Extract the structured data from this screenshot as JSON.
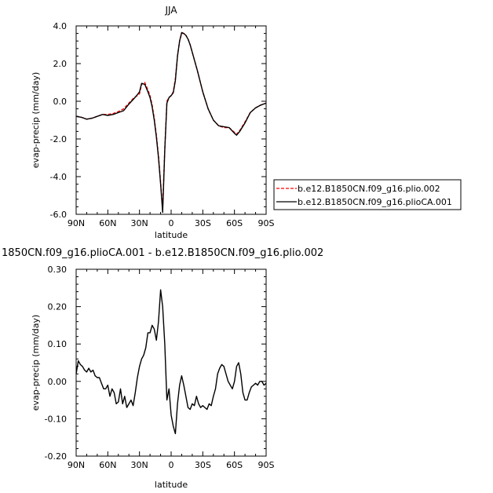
{
  "chart_data": [
    {
      "type": "line",
      "title": "JJA",
      "xlabel": "latitude",
      "ylabel": "evap-precip (mm/day)",
      "xlim": [
        90,
        -90
      ],
      "ylim": [
        -6.0,
        4.0
      ],
      "xticks": [
        90,
        60,
        30,
        0,
        -30,
        -60,
        -90
      ],
      "xtick_labels": [
        "90N",
        "60N",
        "30N",
        "0",
        "30S",
        "60S",
        "90S"
      ],
      "yticks": [
        -6,
        -4,
        -2,
        0,
        2,
        4
      ],
      "ytick_labels": [
        "-6.0",
        "-4.0",
        "-2.0",
        "0.0",
        "2.0",
        "4.0"
      ],
      "legend_position": "right",
      "series": [
        {
          "name": "b.e12.B1850CN.f09_g16.plio.002",
          "color": "#ff0000",
          "dash": "dashed",
          "x": [
            90,
            85,
            80,
            75,
            70,
            65,
            60,
            55,
            50,
            45,
            40,
            35,
            32,
            30,
            28,
            25,
            22,
            20,
            18,
            16,
            14,
            12,
            10,
            8,
            6,
            4,
            2,
            0,
            -2,
            -4,
            -6,
            -8,
            -10,
            -12,
            -14,
            -16,
            -18,
            -20,
            -25,
            -30,
            -35,
            -40,
            -45,
            -50,
            -55,
            -60,
            -62,
            -65,
            -70,
            -75,
            -80,
            -85,
            -90
          ],
          "y": [
            -0.8,
            -0.85,
            -0.95,
            -0.9,
            -0.8,
            -0.7,
            -0.7,
            -0.65,
            -0.55,
            -0.4,
            -0.1,
            0.2,
            0.3,
            0.4,
            0.9,
            1.0,
            0.6,
            0.3,
            -0.2,
            -0.9,
            -1.8,
            -2.9,
            -4.3,
            -5.7,
            -2.5,
            0.0,
            0.2,
            0.3,
            0.5,
            1.2,
            2.4,
            3.2,
            3.6,
            3.6,
            3.5,
            3.3,
            3.0,
            2.6,
            1.6,
            0.5,
            -0.4,
            -1.0,
            -1.3,
            -1.4,
            -1.4,
            -1.65,
            -1.75,
            -1.55,
            -1.1,
            -0.6,
            -0.35,
            -0.2,
            -0.1
          ]
        },
        {
          "name": "b.e12.B1850CN.f09_g16.plioCA.001",
          "color": "#000000",
          "dash": "solid",
          "x": [
            90,
            85,
            80,
            75,
            70,
            65,
            60,
            55,
            50,
            45,
            40,
            35,
            32,
            30,
            28,
            25,
            22,
            20,
            18,
            16,
            14,
            12,
            10,
            8,
            6,
            4,
            2,
            0,
            -2,
            -4,
            -6,
            -8,
            -10,
            -12,
            -14,
            -16,
            -18,
            -20,
            -25,
            -30,
            -35,
            -40,
            -45,
            -50,
            -55,
            -60,
            -62,
            -65,
            -70,
            -75,
            -80,
            -85,
            -90
          ],
          "y": [
            -0.8,
            -0.85,
            -0.95,
            -0.9,
            -0.8,
            -0.7,
            -0.75,
            -0.7,
            -0.6,
            -0.5,
            -0.15,
            0.15,
            0.35,
            0.5,
            0.95,
            0.9,
            0.5,
            0.2,
            -0.3,
            -1.0,
            -1.9,
            -3.0,
            -4.4,
            -5.9,
            -2.6,
            -0.1,
            0.2,
            0.3,
            0.45,
            1.1,
            2.4,
            3.2,
            3.65,
            3.6,
            3.5,
            3.3,
            3.0,
            2.6,
            1.6,
            0.5,
            -0.4,
            -1.0,
            -1.3,
            -1.35,
            -1.4,
            -1.7,
            -1.8,
            -1.6,
            -1.15,
            -0.6,
            -0.35,
            -0.2,
            -0.1
          ]
        }
      ]
    },
    {
      "type": "line",
      "title": "1850CN.f09_g16.plioCA.001 - b.e12.B1850CN.f09_g16.plio.002",
      "xlabel": "latitude",
      "ylabel": "evap-precip (mm/day)",
      "xlim": [
        90,
        -90
      ],
      "ylim": [
        -0.2,
        0.3
      ],
      "xticks": [
        90,
        60,
        30,
        0,
        -30,
        -60,
        -90
      ],
      "xtick_labels": [
        "90N",
        "60N",
        "30N",
        "0",
        "30S",
        "60S",
        "90S"
      ],
      "yticks": [
        -0.2,
        -0.1,
        0.0,
        0.1,
        0.2,
        0.3
      ],
      "ytick_labels": [
        "-0.20",
        "-0.10",
        "0.00",
        "0.10",
        "0.20",
        "0.30"
      ],
      "series": [
        {
          "color": "#000000",
          "dash": "solid",
          "x": [
            90,
            88,
            86,
            84,
            82,
            80,
            78,
            76,
            74,
            72,
            70,
            68,
            66,
            64,
            62,
            60,
            58,
            56,
            54,
            52,
            50,
            48,
            46,
            44,
            42,
            40,
            38,
            36,
            34,
            32,
            30,
            28,
            26,
            24,
            22,
            20,
            18,
            16,
            14,
            12,
            10,
            8,
            6,
            4,
            2,
            0,
            -2,
            -4,
            -6,
            -8,
            -10,
            -12,
            -14,
            -16,
            -18,
            -20,
            -22,
            -24,
            -26,
            -28,
            -30,
            -32,
            -34,
            -36,
            -38,
            -40,
            -42,
            -44,
            -46,
            -48,
            -50,
            -52,
            -54,
            -56,
            -58,
            -60,
            -62,
            -64,
            -66,
            -68,
            -70,
            -72,
            -74,
            -76,
            -78,
            -80,
            -82,
            -84,
            -86,
            -88,
            -90
          ],
          "y": [
            0.02,
            0.055,
            0.045,
            0.04,
            0.03,
            0.025,
            0.035,
            0.025,
            0.03,
            0.015,
            0.01,
            0.01,
            -0.005,
            -0.02,
            -0.02,
            -0.01,
            -0.04,
            -0.02,
            -0.03,
            -0.06,
            -0.055,
            -0.02,
            -0.06,
            -0.04,
            -0.07,
            -0.06,
            -0.05,
            -0.065,
            -0.03,
            0.01,
            0.04,
            0.06,
            0.07,
            0.09,
            0.13,
            0.13,
            0.15,
            0.14,
            0.11,
            0.16,
            0.245,
            0.2,
            0.1,
            -0.05,
            -0.02,
            -0.09,
            -0.12,
            -0.14,
            -0.06,
            -0.01,
            0.015,
            -0.01,
            -0.04,
            -0.07,
            -0.075,
            -0.06,
            -0.065,
            -0.04,
            -0.06,
            -0.07,
            -0.065,
            -0.07,
            -0.075,
            -0.06,
            -0.065,
            -0.04,
            -0.02,
            0.02,
            0.035,
            0.045,
            0.04,
            0.02,
            0.0,
            -0.01,
            -0.02,
            0.0,
            0.04,
            0.05,
            0.02,
            -0.03,
            -0.05,
            -0.05,
            -0.03,
            -0.015,
            -0.01,
            -0.005,
            -0.01,
            0.0,
            0.0,
            -0.01,
            -0.005
          ]
        }
      ]
    }
  ]
}
